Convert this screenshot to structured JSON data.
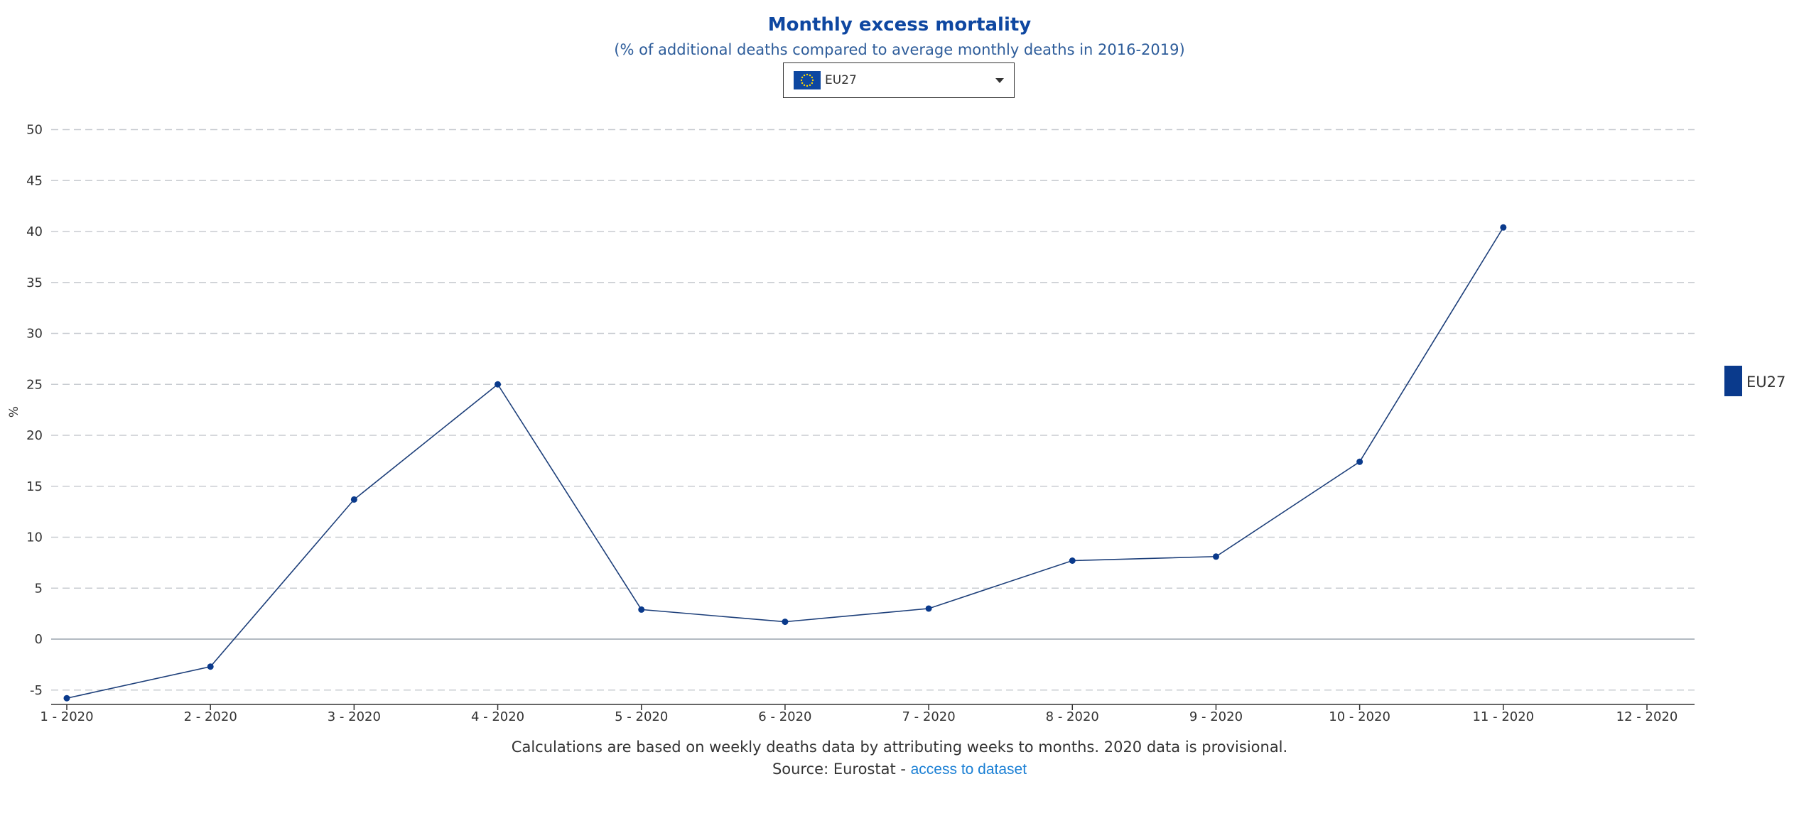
{
  "header": {
    "title": "Monthly excess mortality",
    "subtitle": "(% of additional deaths compared to average monthly deaths in 2016-2019)"
  },
  "selector": {
    "value": "EU27",
    "flag_icon": "eu-flag-icon",
    "caret_icon": "caret-down-icon"
  },
  "footer": {
    "note": "Calculations are based on weekly deaths data by attributing weeks to months. 2020 data is provisional.",
    "source_prefix": "Source: Eurostat - ",
    "source_link": "access to dataset"
  },
  "chart_data": {
    "type": "line",
    "title": "",
    "xlabel": "",
    "ylabel": "%",
    "categories": [
      "1 - 2020",
      "2 - 2020",
      "3 - 2020",
      "4 - 2020",
      "5 - 2020",
      "6 - 2020",
      "7 - 2020",
      "8 - 2020",
      "9 - 2020",
      "10 - 2020",
      "11 - 2020",
      "12 - 2020"
    ],
    "series": [
      {
        "name": "EU27",
        "color": "#0a3a8c",
        "values": [
          -5.8,
          -2.7,
          13.7,
          25.0,
          2.9,
          1.7,
          3.0,
          7.7,
          8.1,
          17.4,
          40.4,
          null
        ]
      }
    ],
    "yticks": [
      -5,
      0,
      5,
      10,
      15,
      20,
      25,
      30,
      35,
      40,
      45,
      50
    ],
    "ylim": [
      -6.5,
      50
    ],
    "grid": true,
    "legend": "right"
  }
}
